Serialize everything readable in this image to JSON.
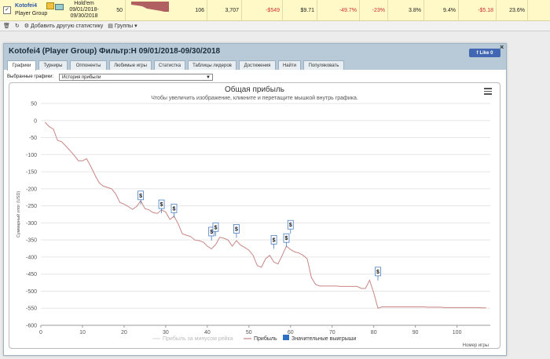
{
  "stats_row": {
    "player_name": "Kotofei4",
    "player_group": "Player Group",
    "game_type": "Hold'em",
    "date_from": "09/01/2018-",
    "date_to": "09/30/2018",
    "values": [
      "50",
      "106",
      "3,707",
      "-$549",
      "$9.71",
      "-49.7%",
      "-23%",
      "3.8%",
      "9.4%",
      "-$5.18",
      "23.6%"
    ]
  },
  "toolbar": {
    "add_stats_label": "Добавить другую статистику",
    "groups_label": "Группы"
  },
  "dialog": {
    "title": "Kotofei4 (Player Group) Фильтр:H 09/01/2018-09/30/2018",
    "like_label": "Like 0",
    "tabs": [
      "Графики",
      "Турниры",
      "Оппоненты",
      "Любимые игры",
      "Статистка",
      "Таблицы лидеров",
      "Достижения",
      "Найти",
      "Популяковать"
    ],
    "select_label": "Выбранные графики:",
    "select_value": "История прибыли"
  },
  "chart_data": {
    "type": "line",
    "title": "Общая прибыль",
    "subtitle": "Чтобы увеличить изображение, кликните и перетащите мышкой внутрь графика.",
    "ylabel": "Суммарный итог (USD)",
    "xlabel": "Номер игры",
    "xlim": [
      0,
      108
    ],
    "ylim": [
      -600,
      50
    ],
    "x_ticks": [
      0,
      10,
      20,
      30,
      40,
      50,
      60,
      70,
      80,
      90,
      100
    ],
    "y_ticks": [
      50,
      0,
      -50,
      -100,
      -150,
      -200,
      -250,
      -300,
      -350,
      -400,
      -450,
      -500,
      -550,
      -600
    ],
    "legend": [
      "Прибыль за минусом рейка",
      "Прибыль",
      "Значительные выигрыши"
    ],
    "series": [
      {
        "name": "Прибыль",
        "color": "#c98585",
        "x": [
          1,
          2,
          3,
          4,
          5,
          6,
          7,
          8,
          9,
          10,
          11,
          12,
          13,
          14,
          15,
          16,
          17,
          18,
          19,
          20,
          21,
          22,
          23,
          24,
          25,
          26,
          27,
          28,
          29,
          30,
          31,
          32,
          33,
          34,
          35,
          36,
          37,
          38,
          39,
          40,
          41,
          42,
          43,
          44,
          45,
          46,
          47,
          48,
          49,
          50,
          51,
          52,
          53,
          54,
          55,
          56,
          57,
          58,
          59,
          60,
          61,
          62,
          63,
          64,
          65,
          66,
          67,
          68,
          69,
          70,
          71,
          72,
          73,
          74,
          75,
          76,
          77,
          78,
          79,
          80,
          81,
          82,
          83,
          84,
          85,
          86,
          87,
          88,
          89,
          90,
          91,
          92,
          93,
          94,
          95,
          96,
          97,
          98,
          99,
          100,
          101,
          102,
          103,
          104,
          105,
          106,
          107
        ],
        "values": [
          -5,
          -18,
          -25,
          -58,
          -62,
          -75,
          -88,
          -102,
          -118,
          -118,
          -112,
          -135,
          -160,
          -182,
          -192,
          -196,
          -200,
          -215,
          -240,
          -245,
          -252,
          -260,
          -252,
          -235,
          -258,
          -262,
          -270,
          -272,
          -262,
          -268,
          -290,
          -280,
          -303,
          -332,
          -336,
          -340,
          -350,
          -352,
          -356,
          -368,
          -376,
          -364,
          -342,
          -345,
          -350,
          -368,
          -352,
          -365,
          -372,
          -380,
          -395,
          -425,
          -430,
          -405,
          -395,
          -415,
          -420,
          -395,
          -368,
          -378,
          -385,
          -388,
          -395,
          -405,
          -460,
          -480,
          -485,
          -485,
          -485,
          -485,
          -485,
          -486,
          -486,
          -486,
          -486,
          -486,
          -492,
          -492,
          -468,
          -505,
          -550,
          -546,
          -546,
          -546,
          -546,
          -546,
          -546,
          -546,
          -546,
          -546,
          -546,
          -546,
          -547,
          -547,
          -547,
          -547,
          -548,
          -548,
          -548,
          -548,
          -548,
          -548,
          -548,
          -548,
          -548,
          -549,
          -549
        ]
      }
    ],
    "big_wins": [
      {
        "x": 24,
        "y": -232
      },
      {
        "x": 29,
        "y": -258
      },
      {
        "x": 32,
        "y": -270
      },
      {
        "x": 41,
        "y": -338
      },
      {
        "x": 42,
        "y": -325
      },
      {
        "x": 47,
        "y": -330
      },
      {
        "x": 56,
        "y": -362
      },
      {
        "x": 59,
        "y": -357
      },
      {
        "x": 60,
        "y": -318
      },
      {
        "x": 81,
        "y": -455
      }
    ]
  }
}
